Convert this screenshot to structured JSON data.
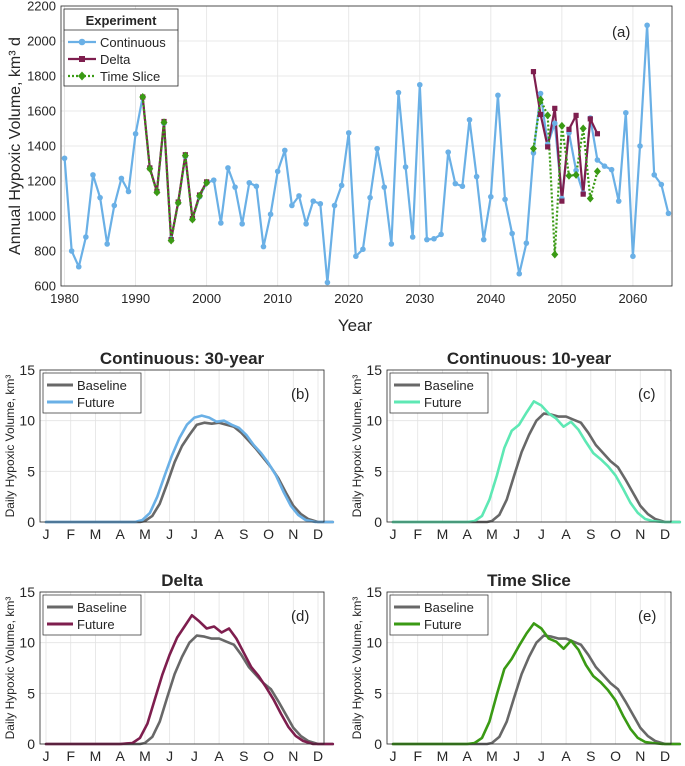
{
  "colors": {
    "continuous": "#6ab0e6",
    "delta": "#7e1e4e",
    "time_slice": "#3a9a14",
    "baseline": "#686868",
    "future_b": "#6ab0e6",
    "future_c": "#5ee8b4",
    "future_d": "#7e1e4e",
    "future_e": "#3a9a14"
  },
  "chart_data": [
    {
      "type": "line",
      "panel_label": "(a)",
      "xlabel": "Year",
      "ylabel": "Annual Hypoxic Volume, km³ d",
      "xlim": [
        1979.5,
        2065.5
      ],
      "ylim": [
        600,
        2200
      ],
      "xticks": [
        1980,
        1990,
        2000,
        2010,
        2020,
        2030,
        2040,
        2050,
        2060
      ],
      "yticks": [
        600,
        800,
        1000,
        1200,
        1400,
        1600,
        1800,
        2000,
        2200
      ],
      "legend": {
        "title": "Experiment",
        "position": "top-left"
      },
      "series": [
        {
          "name": "Continuous",
          "x": [
            1980,
            1981,
            1982,
            1983,
            1984,
            1985,
            1986,
            1987,
            1988,
            1989,
            1990,
            1991,
            1992,
            1993,
            1994,
            1995,
            1996,
            1997,
            1998,
            1999,
            2000,
            2001,
            2002,
            2003,
            2004,
            2005,
            2006,
            2007,
            2008,
            2009,
            2010,
            2011,
            2012,
            2013,
            2014,
            2015,
            2016,
            2017,
            2018,
            2019,
            2020,
            2021,
            2022,
            2023,
            2024,
            2025,
            2026,
            2027,
            2028,
            2029,
            2030,
            2031,
            2032,
            2033,
            2034,
            2035,
            2036,
            2037,
            2038,
            2039,
            2040,
            2041,
            2042,
            2043,
            2044,
            2045,
            2046,
            2047,
            2048,
            2049,
            2050,
            2051,
            2052,
            2053,
            2054,
            2055,
            2056,
            2057,
            2058,
            2059,
            2060,
            2061,
            2062,
            2063,
            2064,
            2065
          ],
          "values": [
            1330,
            800,
            710,
            880,
            1235,
            1105,
            840,
            1060,
            1215,
            1140,
            1470,
            1680,
            1275,
            1140,
            1530,
            870,
            1075,
            1340,
            985,
            1110,
            1190,
            1205,
            960,
            1275,
            1165,
            955,
            1190,
            1170,
            825,
            1010,
            1255,
            1375,
            1060,
            1115,
            955,
            1085,
            1070,
            620,
            1060,
            1175,
            1475,
            770,
            810,
            1105,
            1385,
            1165,
            840,
            1705,
            1280,
            880,
            1750,
            865,
            870,
            895,
            1365,
            1185,
            1170,
            1550,
            1225,
            865,
            1110,
            1690,
            1095,
            900,
            670,
            845,
            1360,
            1700,
            1410,
            1530,
            1100,
            1475,
            1260,
            1130,
            1560,
            1320,
            1285,
            1265,
            1085,
            1590,
            770,
            1400,
            2090,
            1235,
            1180,
            1015
          ]
        },
        {
          "name": "Delta",
          "x": [
            1991,
            1992,
            1993,
            1994,
            1995,
            1996,
            1997,
            1998,
            1999,
            2000,
            2046,
            2047,
            2048,
            2049,
            2050,
            2051,
            2052,
            2053,
            2054,
            2055
          ],
          "values": [
            1680,
            1275,
            1140,
            1540,
            865,
            1080,
            1350,
            985,
            1120,
            1195,
            1825,
            1580,
            1395,
            1615,
            1085,
            1495,
            1575,
            1125,
            1555,
            1470
          ]
        },
        {
          "name": "Time Slice",
          "x": [
            1991,
            1992,
            1993,
            1994,
            1995,
            1996,
            1997,
            1998,
            1999,
            2000,
            2046,
            2047,
            2048,
            2049,
            2050,
            2051,
            2052,
            2053,
            2054,
            2055
          ],
          "values": [
            1680,
            1270,
            1135,
            1535,
            860,
            1075,
            1345,
            980,
            1115,
            1190,
            1385,
            1665,
            1575,
            780,
            1515,
            1230,
            1235,
            1500,
            1100,
            1255
          ]
        }
      ]
    },
    {
      "type": "line",
      "title": "Continuous: 30-year",
      "panel_label": "(b)",
      "ylabel": "Daily Hypoxic Volume, km³",
      "ylim": [
        0,
        15
      ],
      "yticks": [
        0,
        5,
        10,
        15
      ],
      "categories": [
        "J",
        "F",
        "M",
        "A",
        "M",
        "J",
        "J",
        "A",
        "S",
        "O",
        "N",
        "D"
      ],
      "legend": {
        "position": "top-left"
      },
      "series": [
        {
          "name": "Baseline",
          "x": [
            0,
            3,
            3.8,
            4.0,
            4.3,
            4.6,
            4.9,
            5.2,
            5.5,
            5.8,
            6.1,
            6.4,
            6.7,
            7.0,
            7.3,
            7.6,
            7.9,
            8.2,
            8.5,
            8.8,
            9.1,
            9.4,
            9.7,
            10.0,
            10.3,
            10.6,
            11.0,
            11.6
          ],
          "values": [
            0,
            0,
            0,
            0.1,
            0.6,
            1.8,
            3.8,
            5.9,
            7.5,
            8.6,
            9.6,
            9.8,
            9.7,
            9.8,
            9.6,
            9.4,
            8.8,
            8.0,
            7.2,
            6.3,
            5.4,
            4.3,
            2.9,
            1.6,
            0.8,
            0.3,
            0,
            0
          ]
        },
        {
          "name": "Future",
          "x": [
            0,
            3,
            3.6,
            3.9,
            4.2,
            4.5,
            4.8,
            5.1,
            5.4,
            5.7,
            6.0,
            6.3,
            6.6,
            6.9,
            7.2,
            7.5,
            7.8,
            8.1,
            8.4,
            8.7,
            9.0,
            9.3,
            9.6,
            9.9,
            10.2,
            10.5,
            10.9,
            11.6
          ],
          "values": [
            0,
            0,
            0,
            0.2,
            0.9,
            2.5,
            4.6,
            6.6,
            8.3,
            9.6,
            10.3,
            10.5,
            10.3,
            9.9,
            10.0,
            9.6,
            9.3,
            8.6,
            7.6,
            6.8,
            5.8,
            4.6,
            3.0,
            1.6,
            0.7,
            0.2,
            0,
            0
          ]
        }
      ]
    },
    {
      "type": "line",
      "title": "Continuous: 10-year",
      "panel_label": "(c)",
      "ylabel": "Daily Hypoxic Volume, km³",
      "ylim": [
        0,
        15
      ],
      "yticks": [
        0,
        5,
        10,
        15
      ],
      "categories": [
        "J",
        "F",
        "M",
        "A",
        "M",
        "J",
        "J",
        "A",
        "S",
        "O",
        "N",
        "D"
      ],
      "legend": {
        "position": "top-left"
      },
      "series": [
        {
          "name": "Baseline",
          "x": [
            0,
            3,
            3.8,
            4.0,
            4.3,
            4.6,
            4.9,
            5.2,
            5.5,
            5.8,
            6.1,
            6.4,
            6.7,
            7.0,
            7.3,
            7.6,
            7.9,
            8.2,
            8.5,
            8.8,
            9.1,
            9.4,
            9.7,
            10.0,
            10.3,
            10.6,
            11.0,
            11.6
          ],
          "values": [
            0,
            0,
            0,
            0.1,
            0.7,
            2.2,
            4.6,
            6.9,
            8.6,
            10.0,
            10.7,
            10.6,
            10.4,
            10.4,
            10.1,
            9.8,
            8.8,
            7.6,
            6.8,
            6.0,
            5.4,
            4.2,
            2.9,
            1.6,
            0.8,
            0.3,
            0,
            0
          ]
        },
        {
          "name": "Future",
          "x": [
            0,
            3,
            3.3,
            3.6,
            3.9,
            4.2,
            4.5,
            4.8,
            5.1,
            5.4,
            5.7,
            6.0,
            6.3,
            6.6,
            6.9,
            7.2,
            7.5,
            7.8,
            8.1,
            8.4,
            8.7,
            9.0,
            9.3,
            9.6,
            9.9,
            10.2,
            10.5,
            10.9,
            11.6
          ],
          "values": [
            0,
            0,
            0.1,
            0.6,
            2.2,
            4.6,
            7.3,
            9.0,
            9.6,
            10.8,
            11.9,
            11.5,
            10.7,
            10.2,
            9.4,
            9.9,
            9.1,
            7.9,
            6.8,
            6.2,
            5.5,
            4.6,
            3.3,
            1.9,
            0.9,
            0.3,
            0.1,
            0,
            0
          ]
        }
      ]
    },
    {
      "type": "line",
      "title": "Delta",
      "panel_label": "(d)",
      "ylabel": "Daily Hypoxic Volume, km³",
      "ylim": [
        0,
        15
      ],
      "yticks": [
        0,
        5,
        10,
        15
      ],
      "categories": [
        "J",
        "F",
        "M",
        "A",
        "M",
        "J",
        "J",
        "A",
        "S",
        "O",
        "N",
        "D"
      ],
      "legend": {
        "position": "top-left"
      },
      "series": [
        {
          "name": "Baseline",
          "x": [
            0,
            3,
            3.8,
            4.0,
            4.3,
            4.6,
            4.9,
            5.2,
            5.5,
            5.8,
            6.1,
            6.4,
            6.7,
            7.0,
            7.3,
            7.6,
            7.9,
            8.2,
            8.5,
            8.8,
            9.1,
            9.4,
            9.7,
            10.0,
            10.3,
            10.6,
            11.0,
            11.6
          ],
          "values": [
            0,
            0,
            0,
            0.1,
            0.7,
            2.2,
            4.6,
            6.9,
            8.6,
            10.0,
            10.7,
            10.6,
            10.4,
            10.4,
            10.1,
            9.8,
            8.8,
            7.6,
            6.8,
            6.0,
            5.4,
            4.2,
            2.9,
            1.6,
            0.8,
            0.3,
            0,
            0
          ]
        },
        {
          "name": "Future",
          "x": [
            0,
            3,
            3.5,
            3.8,
            4.1,
            4.4,
            4.7,
            5.0,
            5.3,
            5.6,
            5.9,
            6.2,
            6.5,
            6.8,
            7.1,
            7.4,
            7.7,
            8.0,
            8.3,
            8.6,
            8.9,
            9.2,
            9.5,
            9.8,
            10.1,
            10.4,
            10.8,
            11.6
          ],
          "values": [
            0,
            0,
            0.1,
            0.6,
            2.0,
            4.4,
            6.8,
            8.8,
            10.5,
            11.6,
            12.7,
            12.1,
            11.4,
            11.6,
            11.0,
            11.4,
            10.4,
            9.0,
            7.6,
            6.7,
            5.6,
            4.4,
            3.0,
            1.7,
            0.8,
            0.3,
            0,
            0
          ]
        }
      ]
    },
    {
      "type": "line",
      "title": "Time Slice",
      "panel_label": "(e)",
      "ylabel": "Daily Hypoxic Volume, km³",
      "ylim": [
        0,
        15
      ],
      "yticks": [
        0,
        5,
        10,
        15
      ],
      "categories": [
        "J",
        "F",
        "M",
        "A",
        "M",
        "J",
        "J",
        "A",
        "S",
        "O",
        "N",
        "D"
      ],
      "legend": {
        "position": "top-left"
      },
      "series": [
        {
          "name": "Baseline",
          "x": [
            0,
            3,
            3.8,
            4.0,
            4.3,
            4.6,
            4.9,
            5.2,
            5.5,
            5.8,
            6.1,
            6.4,
            6.7,
            7.0,
            7.3,
            7.6,
            7.9,
            8.2,
            8.5,
            8.8,
            9.1,
            9.4,
            9.7,
            10.0,
            10.3,
            10.6,
            11.0,
            11.6
          ],
          "values": [
            0,
            0,
            0,
            0.1,
            0.7,
            2.2,
            4.6,
            6.9,
            8.6,
            10.0,
            10.7,
            10.6,
            10.4,
            10.4,
            10.1,
            9.8,
            8.8,
            7.6,
            6.8,
            6.0,
            5.4,
            4.2,
            2.9,
            1.6,
            0.8,
            0.3,
            0,
            0
          ]
        },
        {
          "name": "Future",
          "x": [
            0,
            3,
            3.3,
            3.6,
            3.9,
            4.2,
            4.5,
            4.8,
            5.1,
            5.4,
            5.7,
            6.0,
            6.3,
            6.6,
            6.9,
            7.2,
            7.5,
            7.8,
            8.1,
            8.4,
            8.7,
            9.0,
            9.3,
            9.6,
            9.9,
            10.2,
            10.5,
            10.9,
            11.6
          ],
          "values": [
            0,
            0,
            0.1,
            0.6,
            2.2,
            4.9,
            7.4,
            8.4,
            9.7,
            10.9,
            11.9,
            11.4,
            10.4,
            10.1,
            9.4,
            10.2,
            9.3,
            7.8,
            6.7,
            6.1,
            5.3,
            4.3,
            2.8,
            1.5,
            0.6,
            0.2,
            0.1,
            0,
            0
          ]
        }
      ]
    }
  ]
}
